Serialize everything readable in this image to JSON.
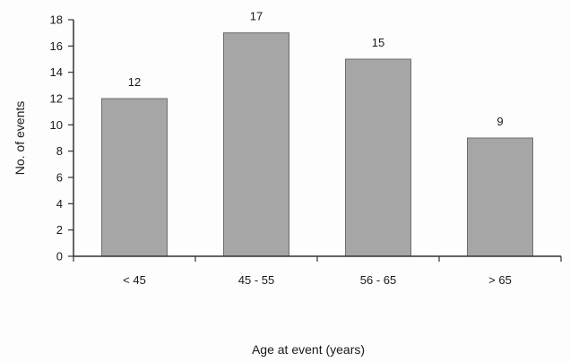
{
  "chart_data": {
    "type": "bar",
    "categories": [
      "< 45",
      "45 - 55",
      "56 - 65",
      "> 65"
    ],
    "values": [
      12,
      17,
      15,
      9
    ],
    "data_labels": [
      "12",
      "17",
      "15",
      "9"
    ],
    "xlabel": "Age at event (years)",
    "ylabel": "No. of events",
    "ylim": [
      0,
      18
    ],
    "yticks": [
      0,
      2,
      4,
      6,
      8,
      10,
      12,
      14,
      16,
      18
    ],
    "grid": false,
    "legend": "none",
    "colors": {
      "bar_fill": "#a6a6a6",
      "bar_stroke": "#6e6e6e",
      "axis": "#333333",
      "text": "#1a1a1a"
    }
  }
}
